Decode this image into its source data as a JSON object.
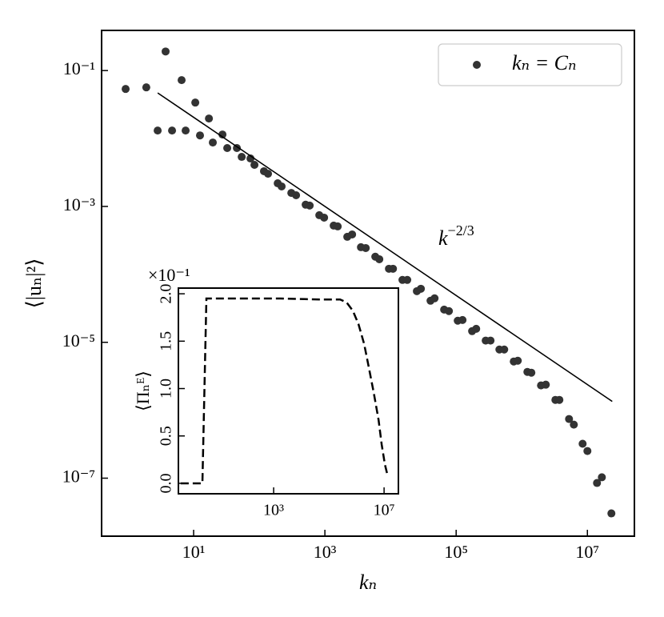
{
  "chart_data": [
    {
      "type": "scatter",
      "xscale": "log",
      "yscale": "log",
      "xlim": [
        0.396,
        52000000
      ],
      "ylim": [
        1.4e-08,
        0.39
      ],
      "xticks": [
        {
          "value": 10,
          "label": "10¹"
        },
        {
          "value": 1000,
          "label": "10³"
        },
        {
          "value": 100000,
          "label": "10⁵"
        },
        {
          "value": 10000000,
          "label": "10⁷"
        }
      ],
      "yticks": [
        {
          "value": 0.1,
          "label": "10⁻¹"
        },
        {
          "value": 0.001,
          "label": "10⁻³"
        },
        {
          "value": 1e-05,
          "label": "10⁻⁵"
        },
        {
          "value": 1e-07,
          "label": "10⁻⁷"
        }
      ],
      "xlabel": "kₙ",
      "ylabel": "⟨|uₙ|²⟩",
      "legend": "upper right",
      "annotation": {
        "text": "k",
        "superscript": "−2/3"
      },
      "series": [
        {
          "name": "kₙ = Cₙ",
          "color": "#333333",
          "x": [
            0.92,
            1.9,
            2.83,
            3.74,
            4.69,
            6.56,
            7.55,
            10.6,
            12.5,
            17.1,
            19.6,
            27.5,
            32.5,
            45.6,
            54,
            73.5,
            84.5,
            118,
            136,
            191,
            219,
            308,
            364,
            509,
            586,
            822,
            973,
            1361,
            1567,
            2193,
            2600,
            3540,
            4190,
            5860,
            6750,
            9460,
            10900,
            15200,
            18000,
            25200,
            29000,
            40700,
            46900,
            65600,
            77600,
            105700,
            125000,
            175000,
            202000,
            282000,
            334000,
            456000,
            540000,
            755000,
            869000,
            1217000,
            1400000,
            1963000,
            2323000,
            3251000,
            3742000,
            5248000,
            6209000,
            8453000,
            10000000,
            14000000,
            16600000,
            23200000
          ],
          "values": [
            0.0536,
            0.0566,
            0.0131,
            0.191,
            0.0131,
            0.0723,
            0.0131,
            0.0338,
            0.0111,
            0.0197,
            0.00873,
            0.01145,
            0.00723,
            0.00723,
            0.00536,
            0.00508,
            0.00409,
            0.0033,
            0.00303,
            0.00219,
            0.00197,
            0.00158,
            0.00146,
            0.00106,
            0.00103,
            0.000743,
            0.000684,
            0.000522,
            0.000508,
            0.000357,
            0.000387,
            0.000251,
            0.000244,
            0.000182,
            0.000167,
            0.000121,
            0.000121,
            8.28e-05,
            8.28e-05,
            5.66e-05,
            6.14e-05,
            4.09e-05,
            4.44e-05,
            3.03e-05,
            2.88e-05,
            2.08e-05,
            2.13e-05,
            1.46e-05,
            1.58e-05,
            1.06e-05,
            1.06e-05,
            7.83e-06,
            7.83e-06,
            5.22e-06,
            5.36e-06,
            3.67e-06,
            3.57e-06,
            2.32e-06,
            2.38e-06,
            1.42e-06,
            1.42e-06,
            7.43e-07,
            6.14e-07,
            3.21e-07,
            2.51e-07,
            8.49e-08,
            1.03e-07,
            3.03e-08
          ]
        },
        {
          "color": "#000000",
          "linestyle": "solid",
          "x": [
            2.83,
            23900000
          ],
          "values": [
            0.0469,
            1.35e-06
          ]
        }
      ]
    },
    {
      "type": "line",
      "xscale": "log",
      "yscale": "linear",
      "xlim": [
        0.355,
        33000000
      ],
      "ylim": [
        -0.011,
        0.206
      ],
      "xticks": [
        {
          "value": 1000,
          "label": "10³"
        },
        {
          "value": 10000000,
          "label": "10⁷"
        }
      ],
      "yticks": [
        {
          "value": 0,
          "label": "0.0"
        },
        {
          "value": 0.05,
          "label": "0.5"
        },
        {
          "value": 0.1,
          "label": "1.0"
        },
        {
          "value": 0.15,
          "label": "1.5"
        },
        {
          "value": 0.2,
          "label": "2.0"
        }
      ],
      "ylabel": "⟨Πₙᴱ⟩",
      "y_offset_label": "×10⁻¹",
      "series": [
        {
          "color": "#000000",
          "linestyle": "dashed",
          "x": [
            0.43,
            2.63,
            3.67,
            60,
            1700,
            48000,
            255000,
            437000,
            741000,
            1180000,
            1900000,
            2820000,
            4200000,
            6300000,
            8200000,
            10700000,
            13100000
          ],
          "values": [
            0,
            0,
            0.195,
            0.195,
            0.195,
            0.194,
            0.194,
            0.191,
            0.182,
            0.168,
            0.147,
            0.122,
            0.096,
            0.067,
            0.041,
            0.02,
            0.0093
          ]
        }
      ]
    }
  ]
}
